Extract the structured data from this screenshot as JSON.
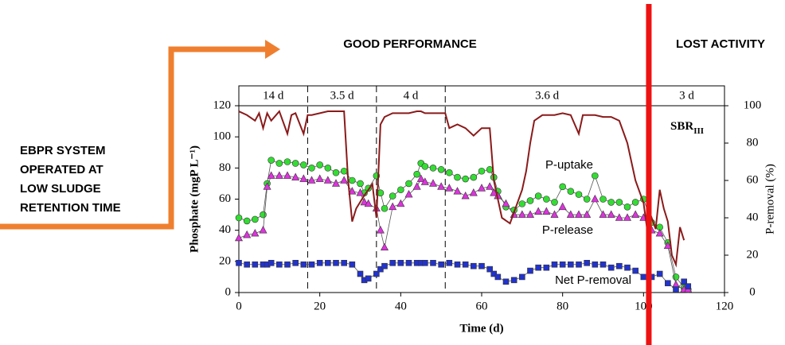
{
  "chart_data": {
    "type": "line",
    "header_left": "GOOD PERFORMANCE",
    "header_right": "LOST ACTIVITY",
    "side_note": [
      "EBPR SYSTEM",
      "OPERATED AT",
      "LOW SLUDGE",
      "RETENTION TIME"
    ],
    "reactor": {
      "text": "SBR",
      "subscript": "III"
    },
    "x_label": "Time (d)",
    "y_label": "Phosphate (mgP L⁻¹)",
    "y2_label": "P-removal (%)",
    "xlim": [
      0,
      120
    ],
    "xticks": [
      0,
      20,
      40,
      60,
      80,
      100,
      120
    ],
    "ylim": [
      0,
      120
    ],
    "yticks": [
      0,
      20,
      40,
      60,
      80,
      100,
      120
    ],
    "y2lim": [
      0,
      100
    ],
    "y2ticks": [
      0,
      20,
      40,
      60,
      80,
      100
    ],
    "phases": [
      "14 d",
      "3.5 d",
      "4 d",
      "3.6 d",
      "3 d"
    ],
    "phase_dividers": [
      17,
      34,
      51
    ],
    "lost_activity_day": 101.3,
    "x": [
      0,
      2,
      4,
      6,
      7,
      8,
      10,
      12,
      14,
      16,
      18,
      20,
      22,
      24,
      26,
      28,
      30,
      31,
      32,
      34,
      35,
      36,
      38,
      40,
      42,
      44,
      45,
      46,
      48,
      50,
      52,
      54,
      56,
      58,
      60,
      62,
      63,
      64,
      66,
      68,
      70,
      72,
      74,
      76,
      78,
      80,
      82,
      84,
      86,
      88,
      90,
      92,
      94,
      96,
      98,
      100,
      102,
      104,
      106,
      108,
      110,
      111
    ],
    "series": [
      {
        "name": "P-uptake",
        "color": "#33dd33",
        "marker": "circle",
        "values": [
          48,
          46,
          47,
          50,
          70,
          85,
          83,
          84,
          83,
          82,
          80,
          82,
          80,
          77,
          78,
          72,
          70,
          64,
          67,
          75,
          64,
          54,
          62,
          66,
          70,
          76,
          83,
          81,
          80,
          79,
          77,
          74,
          73,
          74,
          78,
          79,
          74,
          65,
          55,
          53,
          57,
          59,
          62,
          60,
          58,
          68,
          65,
          63,
          60,
          75,
          60,
          58,
          58,
          55,
          58,
          60,
          45,
          42,
          32,
          10,
          3,
          2
        ]
      },
      {
        "name": "P-release",
        "color": "#dd33dd",
        "marker": "triangle",
        "values": [
          35,
          37,
          38,
          40,
          68,
          75,
          75,
          75,
          74,
          73,
          72,
          73,
          72,
          70,
          72,
          65,
          64,
          58,
          57,
          54,
          40,
          29,
          55,
          57,
          63,
          68,
          73,
          71,
          70,
          68,
          67,
          65,
          62,
          64,
          67,
          68,
          64,
          62,
          57,
          50,
          50,
          50,
          52,
          52,
          50,
          55,
          50,
          50,
          50,
          60,
          50,
          50,
          48,
          48,
          50,
          48,
          40,
          38,
          30,
          5,
          2,
          2
        ]
      },
      {
        "name": "Net P-removal",
        "color": "#2233cc",
        "marker": "square",
        "values": [
          19,
          18,
          18,
          18,
          18,
          19,
          18,
          18,
          19,
          18,
          18,
          19,
          19,
          19,
          19,
          18,
          12,
          8,
          9,
          12,
          15,
          17,
          19,
          19,
          19,
          19,
          19,
          19,
          19,
          18,
          19,
          18,
          18,
          17,
          17,
          15,
          12,
          10,
          7,
          8,
          10,
          14,
          16,
          16,
          18,
          18,
          18,
          18,
          19,
          18,
          18,
          16,
          17,
          16,
          14,
          10,
          10,
          12,
          6,
          2,
          7,
          4
        ]
      },
      {
        "name": "P-removal",
        "color": "#8b1a1a",
        "axis": "y2",
        "x": [
          0,
          2,
          4,
          5,
          6,
          7,
          8,
          10,
          12,
          13,
          14,
          16,
          17,
          18,
          20,
          22,
          24,
          26,
          27,
          28,
          29,
          31,
          33,
          34,
          35,
          36,
          38,
          40,
          42,
          44,
          45,
          46,
          48,
          50,
          51,
          52,
          54,
          56,
          58,
          60,
          62,
          63,
          64,
          65,
          67,
          70,
          71,
          72,
          73,
          75,
          78,
          80,
          82,
          84,
          85,
          88,
          90,
          92,
          94,
          95,
          96,
          98,
          100,
          101,
          102,
          103,
          104,
          105,
          106,
          107,
          108,
          109,
          110
        ],
        "values": [
          97,
          95,
          92,
          96,
          88,
          96,
          92,
          97,
          85,
          95,
          96,
          85,
          95,
          95,
          96,
          97,
          97,
          97,
          60,
          38,
          45,
          52,
          58,
          40,
          90,
          94,
          96,
          96,
          96,
          97,
          97,
          96,
          96,
          96,
          96,
          88,
          90,
          88,
          84,
          88,
          88,
          60,
          50,
          40,
          37,
          55,
          65,
          80,
          92,
          95,
          95,
          96,
          95,
          85,
          95,
          95,
          94,
          94,
          92,
          86,
          80,
          60,
          48,
          32,
          40,
          34,
          55,
          45,
          38,
          20,
          15,
          35,
          28
        ]
      }
    ]
  }
}
